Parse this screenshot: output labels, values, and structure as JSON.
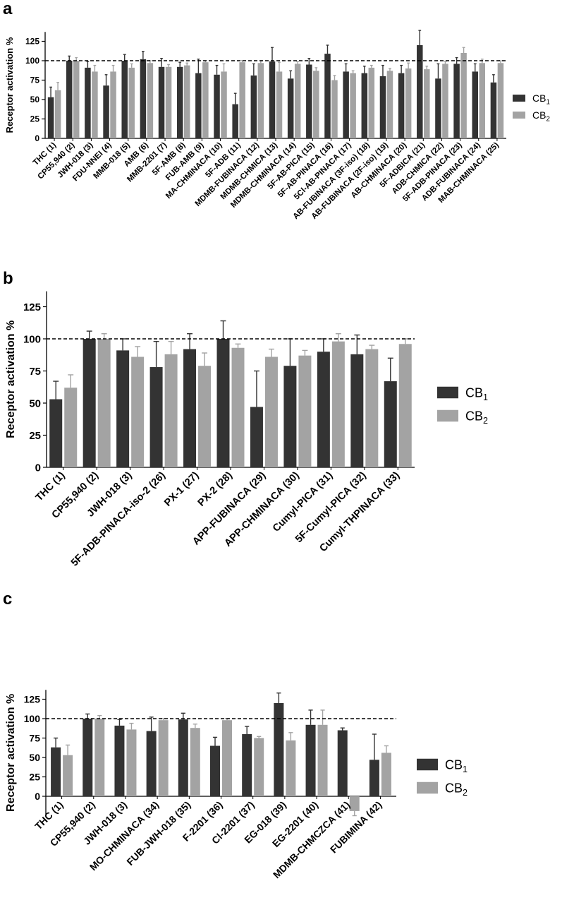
{
  "colors": {
    "cb1": "#333333",
    "cb2": "#a3a3a3",
    "reference_line": "#000000"
  },
  "chart_data": [
    {
      "panel": "a",
      "type": "bar",
      "ylabel": "Receptor activation %",
      "ylim": [
        0,
        137
      ],
      "yticks": [
        0,
        25,
        50,
        75,
        100,
        125
      ],
      "reference_line": 100,
      "legend_position": "right",
      "categories": [
        "THC (1)",
        "CP55,940 (2)",
        "JWH-018 (3)",
        "FDU-NNEI (4)",
        "MMB-018 (5)",
        "AMB (6)",
        "MMB-2201 (7)",
        "5F-AMB (8)",
        "FUB-AMB (9)",
        "MA-CHMINACA (10)",
        "5F-ADB (11)",
        "MDMB-FUBINACA (12)",
        "MDMB-CHMICA (13)",
        "MDMB-CHMINACA (14)",
        "5F-AB-PICA (15)",
        "5F-AB-PINACA (16)",
        "5Cl-AB-PINACA (17)",
        "AB-FUBINACA (3F-iso) (18)",
        "AB-FUBINACA (2F-iso) (19)",
        "AB-CHMINACA (20)",
        "5F-ADBICA (21)",
        "ADB-CHMICA (22)",
        "5F-ADB-PINACA (23)",
        "ADB-FUBINACA (24)",
        "MAB-CHMINACA (25)"
      ],
      "series": [
        {
          "name": "CB1",
          "values": [
            53,
            100,
            91,
            68,
            100,
            102,
            92,
            92,
            84,
            82,
            44,
            81,
            99,
            77,
            95,
            109,
            86,
            84,
            80,
            84,
            120,
            77,
            96,
            86,
            72
          ],
          "errors": [
            13,
            6,
            8,
            14,
            8,
            10,
            11,
            6,
            18,
            12,
            14,
            15,
            18,
            10,
            8,
            11,
            10,
            9,
            14,
            10,
            19,
            19,
            8,
            10,
            10
          ]
        },
        {
          "name": "CB2",
          "values": [
            62,
            100,
            86,
            86,
            91,
            97,
            92,
            94,
            98,
            86,
            98,
            97,
            86,
            96,
            87,
            75,
            84,
            91,
            87,
            90,
            89,
            96,
            110,
            97,
            97
          ],
          "errors": [
            10,
            4,
            8,
            8,
            5,
            3,
            3,
            3,
            2,
            10,
            2,
            3,
            12,
            3,
            4,
            6,
            3,
            3,
            3,
            7,
            4,
            3,
            7,
            5,
            3
          ]
        }
      ]
    },
    {
      "panel": "b",
      "type": "bar",
      "ylabel": "Receptor activation %",
      "ylim": [
        0,
        137
      ],
      "yticks": [
        0,
        25,
        50,
        75,
        100,
        125
      ],
      "reference_line": 100,
      "legend_position": "right",
      "categories": [
        "THC (1)",
        "CP55,940 (2)",
        "JWH-018 (3)",
        "5F-ADB-PINACA-iso-2 (26)",
        "PX-1 (27)",
        "PX-2 (28)",
        "APP-FUBINACA (29)",
        "APP-CHMINACA (30)",
        "Cumyl-PICA (31)",
        "5F-Cumyl-PICA (32)",
        "Cumyl-THPINACA (33)"
      ],
      "series": [
        {
          "name": "CB1",
          "values": [
            53,
            100,
            91,
            78,
            92,
            100,
            47,
            79,
            90,
            88,
            67
          ],
          "errors": [
            14,
            6,
            9,
            20,
            12,
            14,
            28,
            21,
            10,
            15,
            18
          ]
        },
        {
          "name": "CB2",
          "values": [
            62,
            100,
            86,
            88,
            79,
            93,
            86,
            87,
            98,
            92,
            96
          ],
          "errors": [
            10,
            4,
            8,
            10,
            10,
            3,
            6,
            4,
            6,
            3,
            4
          ]
        }
      ]
    },
    {
      "panel": "c",
      "type": "bar",
      "ylabel": "Receptor activation %",
      "ylim": [
        -25,
        137
      ],
      "yticks": [
        0,
        25,
        50,
        75,
        100,
        125
      ],
      "reference_line": 100,
      "legend_position": "right",
      "categories": [
        "THC (1)",
        "CP55,940 (2)",
        "JWH-018 (3)",
        "MO-CHMINACA (34)",
        "FUB-JWH-018 (35)",
        "F-2201 (36)",
        "Cl-2201 (37)",
        "EG-018 (39)",
        "EG-2201 (40)",
        "MDMB-CHMCZCA (41)",
        "FUBIMINA (42)"
      ],
      "series": [
        {
          "name": "CB1",
          "values": [
            63,
            100,
            91,
            84,
            99,
            65,
            80,
            120,
            92,
            85,
            47
          ],
          "errors": [
            12,
            6,
            8,
            18,
            8,
            11,
            10,
            13,
            19,
            3,
            33
          ]
        },
        {
          "name": "CB2",
          "values": [
            53,
            100,
            86,
            98,
            88,
            98,
            75,
            72,
            92,
            -19,
            56
          ],
          "errors": [
            13,
            4,
            8,
            2,
            5,
            2,
            2,
            10,
            19,
            6,
            9
          ]
        }
      ]
    }
  ]
}
